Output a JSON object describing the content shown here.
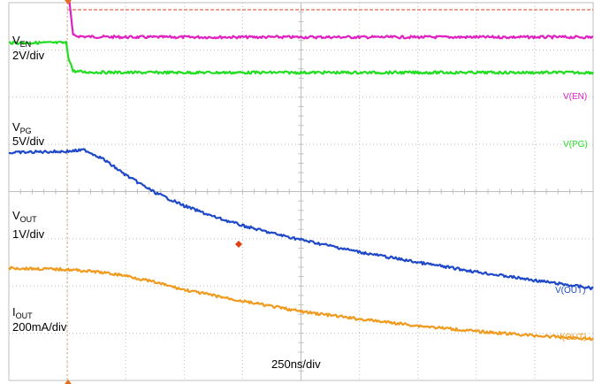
{
  "chart_data": {
    "type": "line",
    "title": "",
    "xlabel": "250ns/div",
    "grid": true,
    "time_divisions": 10,
    "vertical_divisions": 8,
    "colors": {
      "V(EN)": "#e020c0",
      "V(PG)": "#22dd22",
      "V(OUT)": "#1f49c8",
      "I(OUT)": "#f09a1e",
      "grid": "#bfbfbf",
      "reference": "#d04020"
    },
    "labels": [
      {
        "main": "V",
        "sub": "EN",
        "scale": "2V/div"
      },
      {
        "main": "V",
        "sub": "PG",
        "scale": "5V/div"
      },
      {
        "main": "V",
        "sub": "OUT",
        "scale": "1V/div"
      },
      {
        "main": "I",
        "sub": "OUT",
        "scale": "200mA/div"
      }
    ],
    "series": [
      {
        "name": "V(EN)",
        "unit_per_div": "2V/div",
        "x_div": [
          0,
          0.98,
          1.02,
          1.1,
          1.3,
          2,
          4,
          6,
          8,
          10
        ],
        "y_div": [
          8.85,
          8.85,
          8.2,
          7.3,
          7.28,
          7.27,
          7.27,
          7.27,
          7.27,
          7.27
        ]
      },
      {
        "name": "V(PG)",
        "unit_per_div": "5V/div",
        "x_div": [
          0,
          0.98,
          1.02,
          1.1,
          1.3,
          2,
          4,
          6,
          8,
          10
        ],
        "y_div": [
          7.15,
          7.15,
          6.85,
          6.55,
          6.53,
          6.52,
          6.52,
          6.52,
          6.52,
          6.52
        ]
      },
      {
        "name": "V(OUT)",
        "unit_per_div": "1V/div",
        "x_div": [
          0,
          0.5,
          1.0,
          1.3,
          1.6,
          2.0,
          2.5,
          3.0,
          3.5,
          4.0,
          4.5,
          5.0,
          6.0,
          7.0,
          8.0,
          9.0,
          10.0
        ],
        "y_div": [
          4.82,
          4.84,
          4.85,
          4.88,
          4.7,
          4.35,
          3.98,
          3.7,
          3.47,
          3.28,
          3.12,
          2.98,
          2.72,
          2.5,
          2.3,
          2.12,
          1.95
        ]
      },
      {
        "name": "I(OUT)",
        "unit_per_div": "200mA/div",
        "x_div": [
          0,
          1.0,
          1.5,
          2.0,
          2.5,
          3.0,
          4.0,
          5.0,
          6.0,
          7.0,
          8.0,
          9.0,
          10.0
        ],
        "y_div": [
          2.38,
          2.35,
          2.3,
          2.22,
          2.08,
          1.92,
          1.68,
          1.46,
          1.3,
          1.16,
          1.04,
          0.95,
          0.88
        ]
      }
    ]
  }
}
